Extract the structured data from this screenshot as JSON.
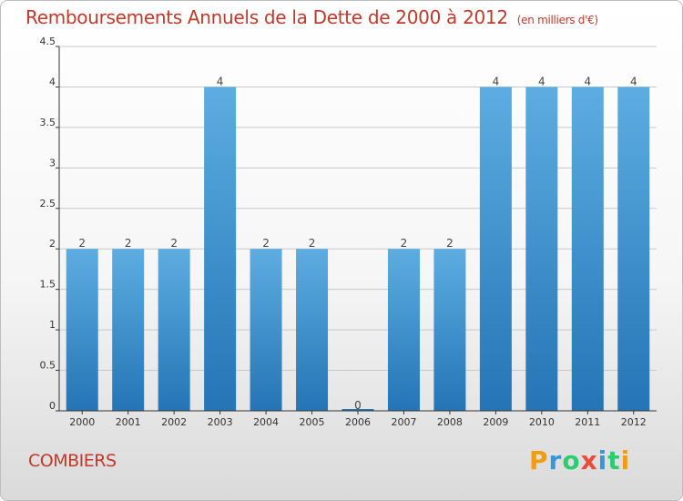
{
  "title": "Remboursements Annuels de la Dette de 2000 à 2012",
  "subtitle": "(en milliers d'€)",
  "commune": "COMBIERS",
  "logo": {
    "letters": [
      {
        "ch": "P",
        "color": "#f39c12"
      },
      {
        "ch": "r",
        "color": "#3498db"
      },
      {
        "ch": "o",
        "color": "#2ecc71"
      },
      {
        "ch": "x",
        "color": "#e74c3c"
      },
      {
        "ch": "i",
        "color": "#3498db"
      },
      {
        "ch": "t",
        "color": "#2ecc71"
      },
      {
        "ch": "i",
        "color": "#f39c12"
      }
    ]
  },
  "colors": {
    "title": "#c0392b",
    "bar_top": "#5dade2",
    "bar_bottom": "#2574b5",
    "grid": "#c8c8c8",
    "axis": "#333333"
  },
  "chart_data": {
    "type": "bar",
    "categories": [
      "2000",
      "2001",
      "2002",
      "2003",
      "2004",
      "2005",
      "2006",
      "2007",
      "2008",
      "2009",
      "2010",
      "2011",
      "2012"
    ],
    "values": [
      2,
      2,
      2,
      4,
      2,
      2,
      0,
      2,
      2,
      4,
      4,
      4,
      4
    ],
    "data_labels": [
      "2",
      "2",
      "2",
      "4",
      "2",
      "2",
      "0",
      "2",
      "2",
      "4",
      "4",
      "4",
      "4"
    ],
    "y_ticks": [
      "0",
      "0.5",
      "1",
      "1.5",
      "2",
      "2.5",
      "3",
      "3.5",
      "4",
      "4.5"
    ],
    "ylim": [
      0,
      4.5
    ],
    "grid": true,
    "legend": "none"
  }
}
